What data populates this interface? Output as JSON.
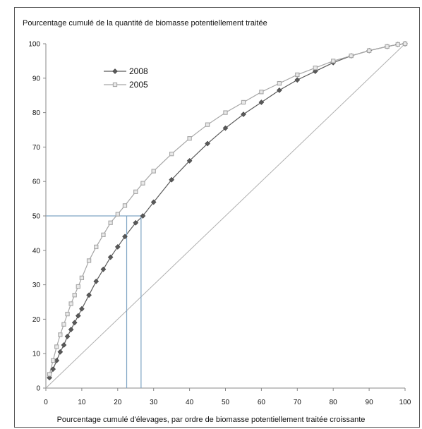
{
  "chart_data": {
    "type": "line",
    "ylabel": "Pourcentage cumulé de la quantité de biomasse potentiellement traitée",
    "xlabel": "Pourcentage  cumulé d'élevages, par ordre de biomasse potentiellement traitée croissante",
    "xlim": [
      0,
      100
    ],
    "ylim": [
      0,
      100
    ],
    "x_ticks": [
      "0",
      "10",
      "20",
      "30",
      "40",
      "50",
      "60",
      "70",
      "80",
      "90",
      "100"
    ],
    "y_ticks": [
      "0",
      "10",
      "20",
      "30",
      "40",
      "50",
      "60",
      "70",
      "80",
      "90",
      "100"
    ],
    "grid": false,
    "legend_position": "top-left",
    "x": [
      1,
      2,
      3,
      4,
      5,
      6,
      7,
      8,
      9,
      10,
      12,
      14,
      16,
      18,
      20,
      22,
      25,
      27,
      30,
      35,
      40,
      45,
      50,
      55,
      60,
      65,
      70,
      75,
      80,
      85,
      90,
      95,
      98,
      100
    ],
    "series": [
      {
        "name": "2008",
        "color": "#5a5a5a",
        "marker": "diamond",
        "values": [
          3,
          5.5,
          8,
          10.5,
          12.5,
          15,
          17,
          19,
          21,
          23,
          27,
          31,
          34.5,
          38,
          41,
          44,
          48,
          50,
          54,
          60.5,
          66,
          71,
          75.5,
          79.5,
          83,
          86.5,
          89.5,
          92,
          94.5,
          96.5,
          98,
          99.2,
          99.8,
          100
        ]
      },
      {
        "name": "2005",
        "color": "#a6a6a6",
        "marker": "square",
        "values": [
          4,
          8,
          12,
          15.5,
          18.5,
          21.5,
          24.5,
          27,
          29.5,
          32,
          37,
          41,
          44.5,
          48,
          50.5,
          53,
          57,
          59.5,
          63,
          68,
          72.5,
          76.5,
          80,
          83,
          86,
          88.5,
          91,
          93,
          95,
          96.5,
          98,
          99.2,
          99.8,
          100
        ]
      },
      {
        "name": "",
        "color": "#b0b0b0",
        "marker": "none",
        "x": [
          0,
          100
        ],
        "values": [
          0,
          100
        ]
      }
    ],
    "reference_lines": [
      {
        "color": "#7ea3c4",
        "points": [
          [
            0,
            50
          ],
          [
            26.5,
            50
          ],
          [
            26.5,
            0
          ]
        ]
      },
      {
        "color": "#7ea3c4",
        "points": [
          [
            22.5,
            50
          ],
          [
            22.5,
            0
          ]
        ]
      }
    ]
  }
}
